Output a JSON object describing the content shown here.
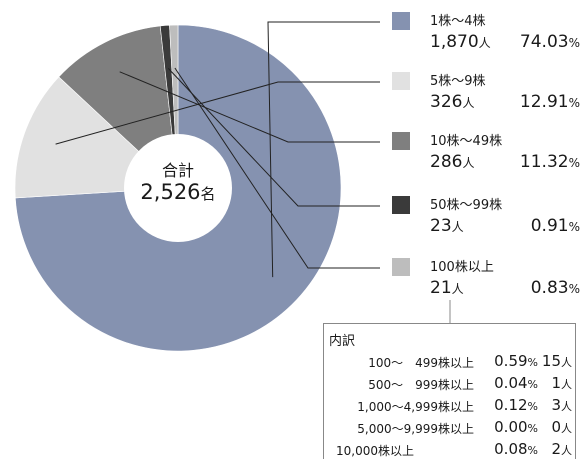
{
  "chart_data": {
    "type": "pie",
    "center_title": "合計",
    "center_total": "2,526",
    "center_unit": "名",
    "slices": [
      {
        "label": "1株～4株",
        "count": "1,870",
        "count_unit": "人",
        "value": 74.03,
        "percent": "74.03",
        "percent_unit": "%",
        "color": "#8592B0"
      },
      {
        "label": "5株～9株",
        "count": "326",
        "count_unit": "人",
        "value": 12.91,
        "percent": "12.91",
        "percent_unit": "%",
        "color": "#E1E1E1"
      },
      {
        "label": "10株～49株",
        "count": "286",
        "count_unit": "人",
        "value": 11.32,
        "percent": "11.32",
        "percent_unit": "%",
        "color": "#7F7F7F"
      },
      {
        "label": "50株～99株",
        "count": "23",
        "count_unit": "人",
        "value": 0.91,
        "percent": "0.91",
        "percent_unit": "%",
        "color": "#3A3A3A"
      },
      {
        "label": "100株以上",
        "count": "21",
        "count_unit": "人",
        "value": 0.83,
        "percent": "0.83",
        "percent_unit": "%",
        "color": "#BDBDBD"
      }
    ],
    "breakdown": {
      "title": "内訳",
      "rows": [
        {
          "label": "100～　499株以上",
          "percent": "0.59",
          "percent_unit": "%",
          "count": "15",
          "count_unit": "人"
        },
        {
          "label": "500～　999株以上",
          "percent": "0.04",
          "percent_unit": "%",
          "count": "1",
          "count_unit": "人"
        },
        {
          "label": "1,000～4,999株以上",
          "percent": "0.12",
          "percent_unit": "%",
          "count": "3",
          "count_unit": "人"
        },
        {
          "label": "5,000～9,999株以上",
          "percent": "0.00",
          "percent_unit": "%",
          "count": "0",
          "count_unit": "人"
        },
        {
          "label": "10,000株以上",
          "percent": "0.08",
          "percent_unit": "%",
          "count": "2",
          "count_unit": "人"
        }
      ]
    }
  }
}
